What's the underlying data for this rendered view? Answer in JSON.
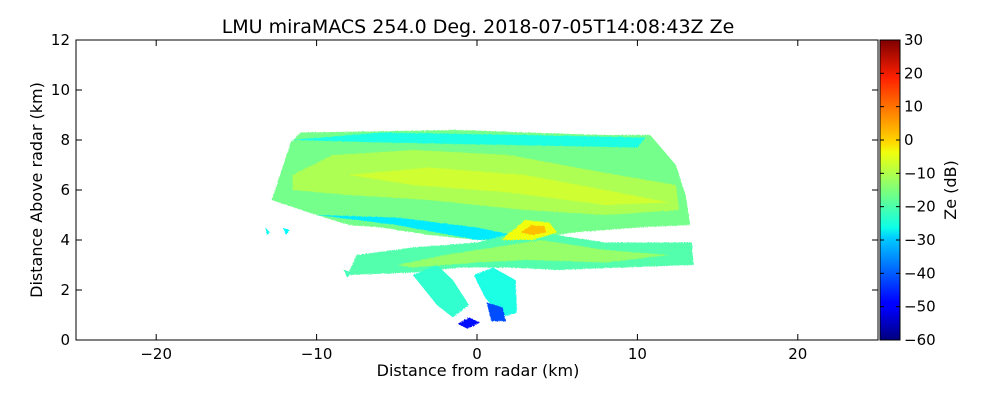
{
  "chart_data": {
    "type": "heatmap",
    "title": "LMU miraMACS 254.0 Deg. 2018-07-05T14:08:43Z  Ze",
    "xlabel": "Distance from radar (km)",
    "ylabel": "Distance Above radar  (km)",
    "xlim": [
      -25,
      25
    ],
    "ylim": [
      0,
      12
    ],
    "xticks": [
      -20,
      -10,
      0,
      10,
      20
    ],
    "xtick_labels": [
      "−20",
      "−10",
      "0",
      "10",
      "20"
    ],
    "yticks": [
      0,
      2,
      4,
      6,
      8,
      10,
      12
    ],
    "ytick_labels": [
      "0",
      "2",
      "4",
      "6",
      "8",
      "10",
      "12"
    ],
    "colorbar": {
      "label": "Ze (dB)",
      "range": [
        -60,
        30
      ],
      "colormap": "jet",
      "ticks": [
        30,
        20,
        10,
        0,
        -10,
        -20,
        -30,
        -40,
        -50,
        -60
      ],
      "tick_labels": [
        "30",
        "20",
        "10",
        "0",
        "−10",
        "−20",
        "−30",
        "−40",
        "−50",
        "−60"
      ]
    },
    "echo_regions": [
      {
        "name": "upper-cloud-layer",
        "ze_db": -12,
        "x_km": [
          -12.8,
          13.2
        ],
        "z_km": [
          4.4,
          8.4
        ]
      },
      {
        "name": "upper-layer-base",
        "ze_db": -22,
        "x_km": [
          -10,
          10
        ],
        "z_km": [
          4.0,
          4.8
        ]
      },
      {
        "name": "mid-level-band",
        "ze_db": -15,
        "x_km": [
          -8,
          13.5
        ],
        "z_km": [
          2.6,
          4.2
        ]
      },
      {
        "name": "convective-core",
        "ze_db": -2,
        "x_km": [
          2,
          5
        ],
        "z_km": [
          4.0,
          4.8
        ]
      },
      {
        "name": "lower-lobes",
        "ze_db": -25,
        "x_km": [
          -4,
          2.5
        ],
        "z_km": [
          0.7,
          3.2
        ]
      }
    ],
    "colors": {
      "axis": "#000000",
      "background": "#ffffff"
    }
  }
}
